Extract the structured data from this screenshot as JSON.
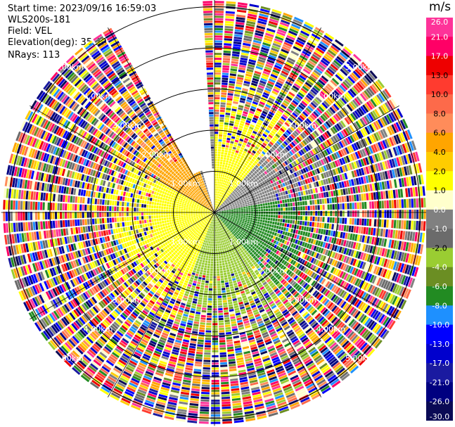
{
  "header": {
    "start_time": "Start time: 2023/09/16 16:59:03",
    "instrument": "WLS200s-181",
    "field": "Field: VEL",
    "elevation": "Elevation(deg): 35.30",
    "nrays": "NRays: 113"
  },
  "chart_data": {
    "type": "ppi",
    "field": "VEL",
    "units": "m/s",
    "elevation_deg": 35.3,
    "nrays": 113,
    "range_rings_km": [
      1.0,
      2.0,
      3.0,
      4.0,
      5.0
    ],
    "range_ring_labels": [
      "1.00km",
      "2.00km",
      "3.00km",
      "4.00km",
      "5.00km"
    ],
    "max_range_km": 5.1,
    "missing_sector_azimuth_deg": [
      332,
      358
    ],
    "colorbar": {
      "title": "m/s",
      "ticks": [
        "26.0",
        "21.0",
        "17.0",
        "13.0",
        "10.0",
        "8.0",
        "6.0",
        "4.0",
        "2.0",
        "1.0",
        "0.0",
        "-1.0",
        "-2.0",
        "-4.0",
        "-6.0",
        "-8.0",
        "-10.0",
        "-13.0",
        "-17.0",
        "-21.0",
        "-26.0",
        "-30.0"
      ],
      "colors": [
        "#fe3399",
        "#ff0066",
        "#ee0000",
        "#ff3b2f",
        "#fd6a4a",
        "#ff8c5a",
        "#ffa500",
        "#ffcc00",
        "#ffff00",
        "#ffffcc",
        "#808080",
        "#6b6b6b",
        "#9acd32",
        "#6b8e23",
        "#228b22",
        "#1e90ff",
        "#0000ff",
        "#0000cd",
        "#1a1aa0",
        "#000080",
        "#0a0a55"
      ]
    },
    "near_field_pattern": [
      {
        "az_from": 200,
        "az_to": 300,
        "color": "#ffff00"
      },
      {
        "az_from": 300,
        "az_to": 340,
        "color": "#ffa500"
      },
      {
        "az_from": 0,
        "az_to": 40,
        "color": "#ffff00"
      },
      {
        "az_from": 40,
        "az_to": 80,
        "color": "#808080"
      },
      {
        "az_from": 80,
        "az_to": 140,
        "color": "#228b22"
      },
      {
        "az_from": 140,
        "az_to": 200,
        "color": "#9acd32"
      }
    ]
  }
}
